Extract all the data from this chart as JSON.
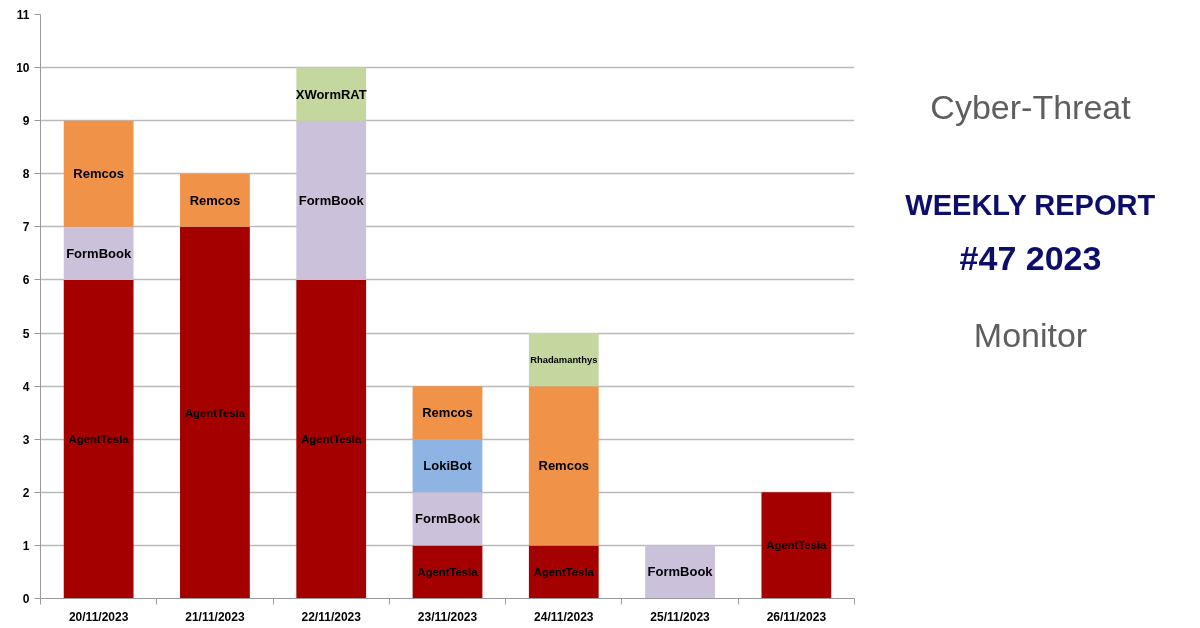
{
  "chart_data": {
    "type": "bar",
    "stacked": true,
    "title": "WEEKLY REPORT",
    "subtitle": "#47 2023",
    "annotations": [
      "Cyber-Threat",
      "Monitor"
    ],
    "categories": [
      "20/11/2023",
      "21/11/2023",
      "22/11/2023",
      "23/11/2023",
      "24/11/2023",
      "25/11/2023",
      "26/11/2023"
    ],
    "series": [
      {
        "name": "AgentTesla",
        "color": "#a50000",
        "values": [
          6,
          7,
          6,
          1,
          1,
          null,
          2
        ]
      },
      {
        "name": "FormBook",
        "color": "#ccc1da",
        "values": [
          1,
          null,
          3,
          1,
          null,
          1,
          null
        ]
      },
      {
        "name": "LokiBot",
        "color": "#8eb4e3",
        "values": [
          null,
          null,
          null,
          1,
          null,
          null,
          null
        ]
      },
      {
        "name": "Remcos",
        "color": "#f09248",
        "values": [
          2,
          1,
          null,
          1,
          3,
          null,
          null
        ]
      },
      {
        "name": "XWormRAT",
        "color": "#c4d79f",
        "values": [
          null,
          null,
          1,
          null,
          null,
          null,
          null
        ]
      },
      {
        "name": "Rhadamanthys",
        "color": "#c4d79f",
        "values": [
          null,
          null,
          null,
          null,
          1,
          null,
          null
        ]
      }
    ],
    "ylim": [
      0,
      11
    ],
    "yticks": [
      0,
      1,
      2,
      3,
      4,
      5,
      6,
      7,
      8,
      9,
      10,
      11
    ],
    "grid": "y"
  }
}
